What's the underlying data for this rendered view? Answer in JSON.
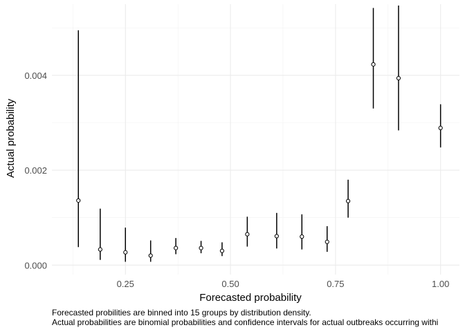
{
  "chart_data": {
    "type": "scatter",
    "xlabel": "Forecasted probability",
    "ylabel": "Actual probability",
    "xlim": [
      0.075,
      1.045
    ],
    "ylim": [
      -0.0002,
      0.0055
    ],
    "x_ticks": [
      0.25,
      0.5,
      0.75,
      1.0
    ],
    "x_tick_labels": [
      "0.25",
      "0.50",
      "0.75",
      "1.00"
    ],
    "y_ticks": [
      0.0,
      0.002,
      0.004
    ],
    "y_tick_labels": [
      "0.000",
      "0.002",
      "0.004"
    ],
    "grid": true,
    "points": [
      {
        "x": 0.138,
        "y": 0.00136,
        "lo": 0.00038,
        "hi": 0.00495
      },
      {
        "x": 0.19,
        "y": 0.00033,
        "lo": 0.00011,
        "hi": 0.00119
      },
      {
        "x": 0.25,
        "y": 0.00027,
        "lo": 7e-05,
        "hi": 0.00079
      },
      {
        "x": 0.31,
        "y": 0.0002,
        "lo": 7e-05,
        "hi": 0.00052
      },
      {
        "x": 0.37,
        "y": 0.00036,
        "lo": 0.00023,
        "hi": 0.00057
      },
      {
        "x": 0.43,
        "y": 0.00036,
        "lo": 0.00025,
        "hi": 0.00051
      },
      {
        "x": 0.48,
        "y": 0.0003,
        "lo": 0.00019,
        "hi": 0.00048
      },
      {
        "x": 0.54,
        "y": 0.00065,
        "lo": 0.00039,
        "hi": 0.00102
      },
      {
        "x": 0.61,
        "y": 0.00061,
        "lo": 0.00035,
        "hi": 0.0011
      },
      {
        "x": 0.67,
        "y": 0.0006,
        "lo": 0.00033,
        "hi": 0.00107
      },
      {
        "x": 0.73,
        "y": 0.00049,
        "lo": 0.00028,
        "hi": 0.00082
      },
      {
        "x": 0.78,
        "y": 0.00135,
        "lo": 0.001,
        "hi": 0.0018
      },
      {
        "x": 0.84,
        "y": 0.00423,
        "lo": 0.0033,
        "hi": 0.00542
      },
      {
        "x": 0.9,
        "y": 0.00394,
        "lo": 0.00284,
        "hi": 0.00547
      },
      {
        "x": 1.0,
        "y": 0.00289,
        "lo": 0.00248,
        "hi": 0.00339
      }
    ]
  },
  "caption": {
    "line1": "Forecasted probilities are binned into 15 groups by distribution density.",
    "line2": "Actual probabilities are  binomial probabilities and confidence intervals for actual outbreaks occurring withi"
  }
}
